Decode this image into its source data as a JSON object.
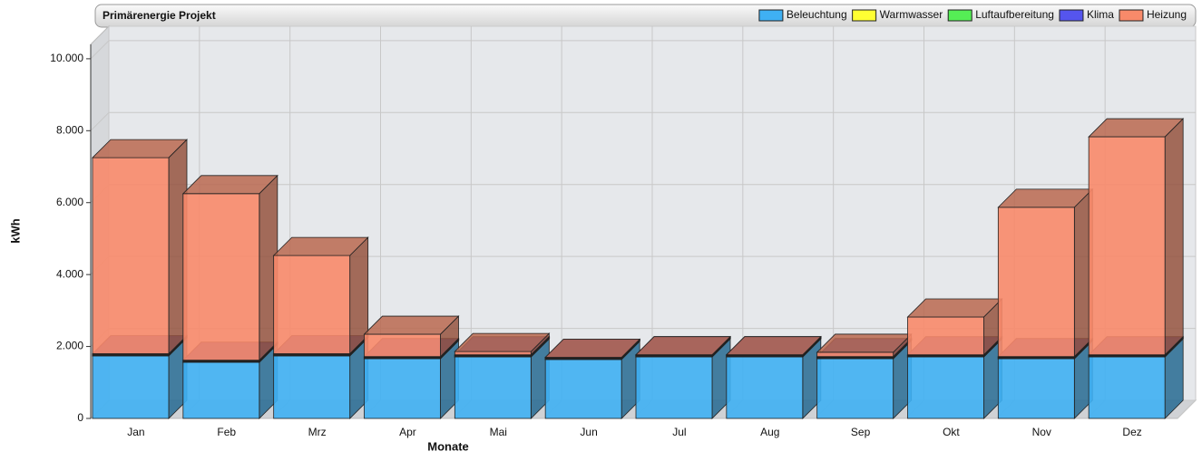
{
  "chart_data": {
    "type": "bar3d_stacked",
    "title": "Primärenergie Projekt",
    "x_label": "Monate",
    "y_label": "kWh",
    "categories": [
      "Jan",
      "Feb",
      "Mrz",
      "Apr",
      "Mai",
      "Jun",
      "Jul",
      "Aug",
      "Sep",
      "Okt",
      "Nov",
      "Dez"
    ],
    "series": [
      {
        "name": "Beleuchtung",
        "color": "#3fb0f3",
        "values": [
          1740,
          1560,
          1740,
          1660,
          1710,
          1640,
          1710,
          1710,
          1660,
          1710,
          1660,
          1710
        ]
      },
      {
        "name": "Warmwasser",
        "color": "#ffff33",
        "values": [
          20,
          20,
          20,
          20,
          20,
          20,
          20,
          20,
          20,
          20,
          20,
          20
        ]
      },
      {
        "name": "Luftaufbereitung",
        "color": "#55ee55",
        "values": [
          20,
          20,
          20,
          20,
          20,
          20,
          20,
          20,
          20,
          20,
          20,
          20
        ]
      },
      {
        "name": "Klima",
        "color": "#5555ee",
        "values": [
          20,
          20,
          20,
          20,
          20,
          20,
          20,
          20,
          20,
          20,
          20,
          20
        ]
      },
      {
        "name": "Heizung",
        "color": "#f88a6a",
        "values": [
          5450,
          4630,
          2730,
          620,
          90,
          0,
          0,
          0,
          120,
          1050,
          4150,
          6060
        ]
      }
    ],
    "ylim": [
      0,
      10400
    ],
    "yticks": [
      0,
      {
        "value": 2000,
        "label": "2.000"
      },
      {
        "value": 4000,
        "label": "4.000"
      },
      {
        "value": 6000,
        "label": "6.000"
      },
      {
        "value": 8000,
        "label": "8.000"
      },
      {
        "value": 10000,
        "label": "10.000"
      }
    ],
    "grid": true,
    "legend": "top-right"
  }
}
